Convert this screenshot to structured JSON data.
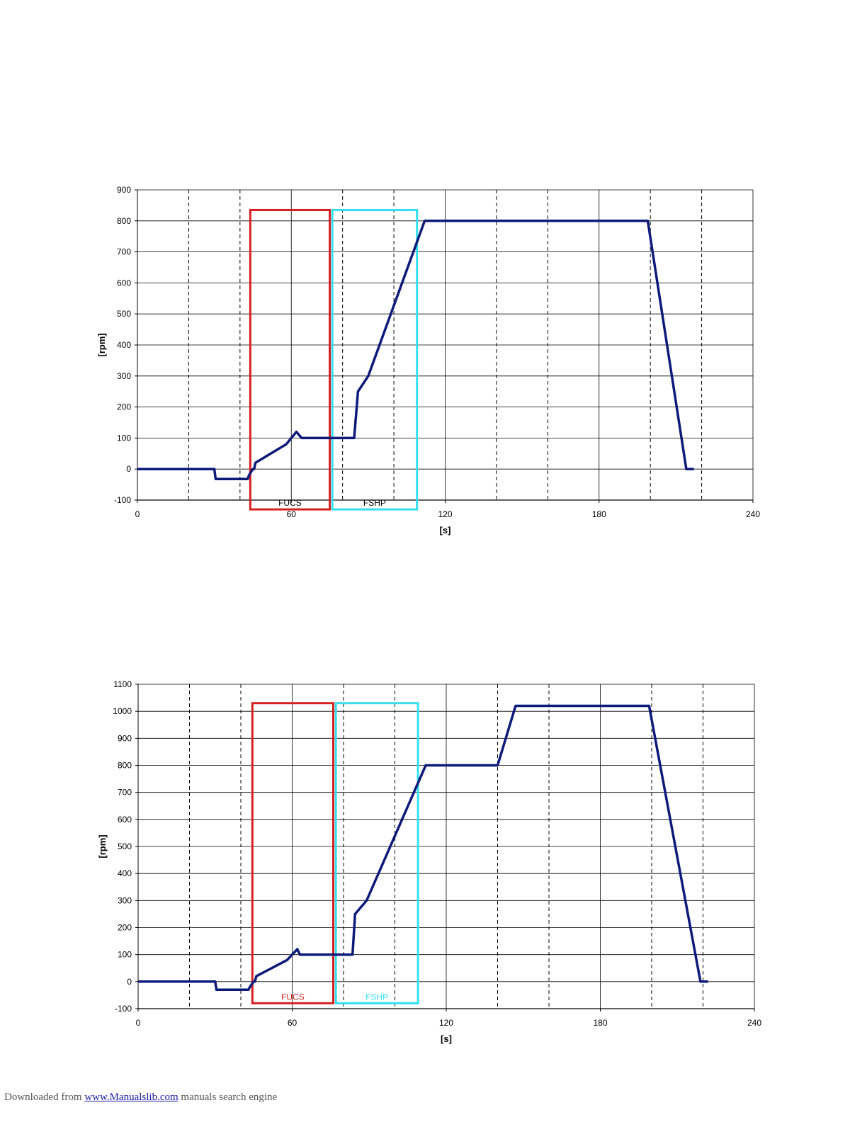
{
  "chart_data": [
    {
      "type": "line",
      "xlabel": "[s]",
      "ylabel": "[rpm]",
      "xlim": [
        0,
        240
      ],
      "ylim": [
        -100,
        900
      ],
      "x_ticks": [
        0,
        60,
        120,
        180,
        240
      ],
      "y_ticks": [
        -100,
        0,
        100,
        200,
        300,
        400,
        500,
        600,
        700,
        800,
        900
      ],
      "grid": "solid major lines every 60 s and 100 rpm; dashed minor lines every 20 s",
      "line_color": "#0d1a7a",
      "series": [
        {
          "x": [
            0,
            30,
            30.5,
            43,
            43.5,
            45,
            45.5,
            46,
            58,
            62,
            64,
            84,
            84.5,
            86,
            90,
            112,
            199,
            214,
            217
          ],
          "y": [
            0,
            0,
            -32,
            -32,
            -20,
            0,
            0,
            20,
            80,
            120,
            100,
            100,
            100,
            250,
            300,
            800,
            800,
            0,
            0
          ]
        }
      ],
      "annotations": [
        {
          "label": "FUCS",
          "x_range": [
            44,
            75
          ],
          "y_range": [
            -130,
            835
          ],
          "color": "#d62020",
          "label_color": "#000000"
        },
        {
          "label": "FSHP",
          "x_range": [
            76,
            109
          ],
          "y_range": [
            -130,
            835
          ],
          "color": "#33e0f0",
          "label_color": "#000000"
        }
      ]
    },
    {
      "type": "line",
      "xlabel": "[s]",
      "ylabel": "[rpm]",
      "xlim": [
        0,
        240
      ],
      "ylim": [
        -100,
        1100
      ],
      "x_ticks": [
        0,
        60,
        120,
        180,
        240
      ],
      "y_ticks": [
        -100,
        0,
        100,
        200,
        300,
        400,
        500,
        600,
        700,
        800,
        900,
        1000,
        1100
      ],
      "grid": "solid major lines every 60 s and 100 rpm; dashed minor lines every 20 s",
      "line_color": "#0d1a7a",
      "series": [
        {
          "x": [
            0,
            8,
            30,
            30.5,
            43,
            43.5,
            45,
            45.5,
            46,
            58,
            62,
            63,
            83,
            83.5,
            84.5,
            89,
            112,
            140,
            147,
            199,
            219,
            222
          ],
          "y": [
            0,
            0,
            0,
            -30,
            -30,
            -20,
            0,
            0,
            20,
            80,
            120,
            100,
            100,
            100,
            250,
            300,
            800,
            800,
            1020,
            1020,
            0,
            0
          ]
        }
      ],
      "annotations": [
        {
          "label": "FUCS",
          "x_range": [
            44.5,
            76
          ],
          "y_range": [
            -80,
            1030
          ],
          "color": "#d62020",
          "label_color": "#d62020"
        },
        {
          "label": "FSHP",
          "x_range": [
            77,
            109
          ],
          "y_range": [
            -80,
            1030
          ],
          "color": "#33e0f0",
          "label_color": "#33e0f0"
        }
      ]
    }
  ],
  "footer": {
    "prefix": "Downloaded from ",
    "link_text": "www.Manualslib.com",
    "suffix": " manuals search engine"
  }
}
